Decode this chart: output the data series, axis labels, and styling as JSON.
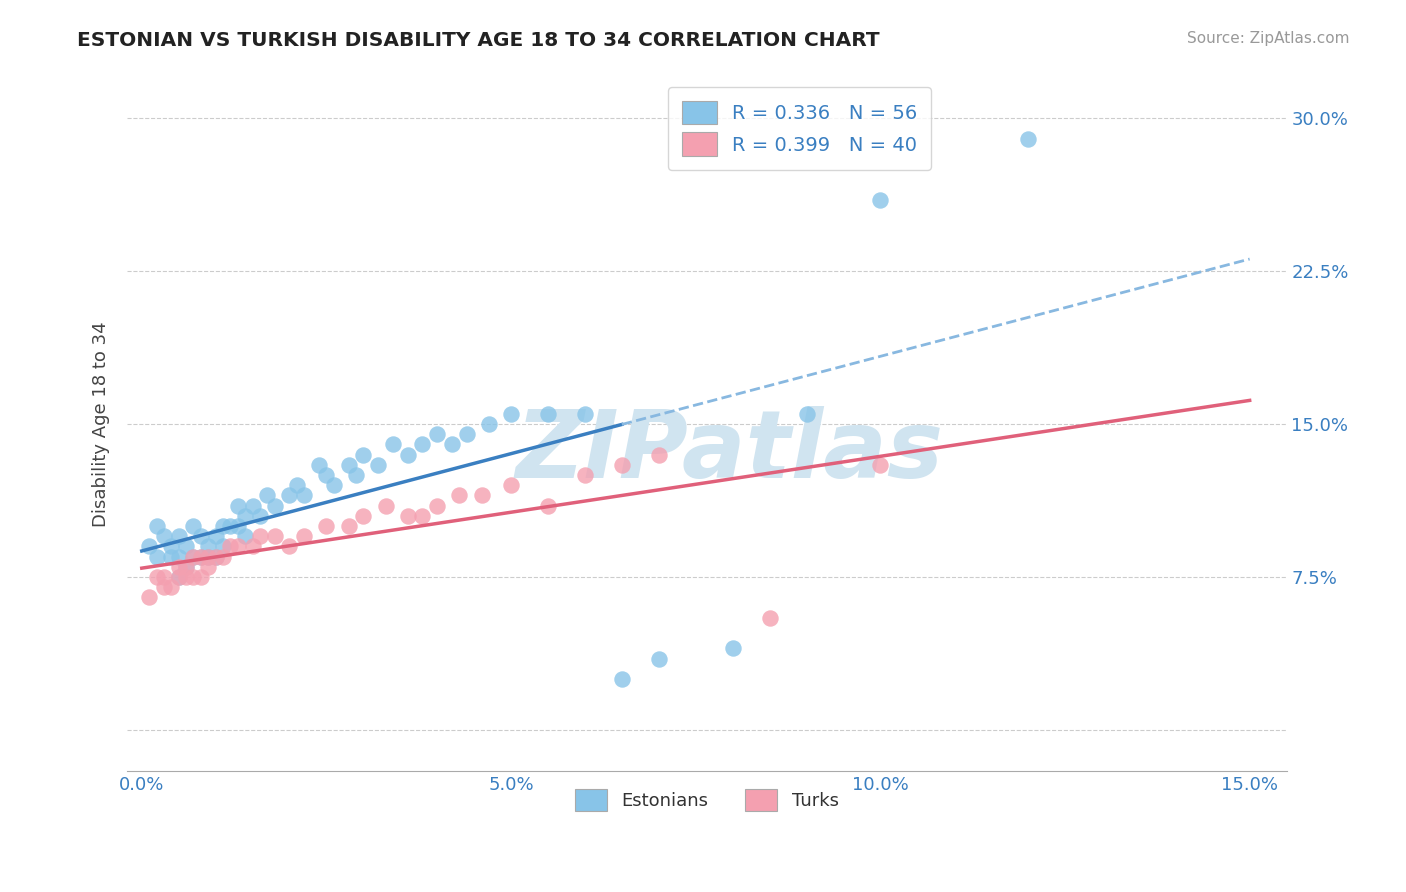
{
  "title": "ESTONIAN VS TURKISH DISABILITY AGE 18 TO 34 CORRELATION CHART",
  "source": "Source: ZipAtlas.com",
  "ylabel": "Disability Age 18 to 34",
  "xlim": [
    -0.002,
    0.155
  ],
  "ylim": [
    -0.02,
    0.32
  ],
  "xticks": [
    0.0,
    0.05,
    0.1,
    0.15
  ],
  "xticklabels": [
    "0.0%",
    "5.0%",
    "10.0%",
    "15.0%"
  ],
  "yticks": [
    0.0,
    0.075,
    0.15,
    0.225,
    0.3
  ],
  "yticklabels": [
    "",
    "7.5%",
    "15.0%",
    "22.5%",
    "30.0%"
  ],
  "R_estonian": 0.336,
  "N_estonian": 56,
  "R_turkish": 0.399,
  "N_turkish": 40,
  "estonian_color": "#88c4e8",
  "turkish_color": "#f4a0b0",
  "estonian_line_color": "#3a7fc1",
  "turkish_line_color": "#e0607a",
  "dashed_line_color": "#88b8e0",
  "watermark_color": "#d0e4f0",
  "background_color": "#ffffff",
  "legend_color": "#3a7fc1",
  "tick_label_color": "#3a7fc1",
  "grid_color": "#cccccc",
  "estonian_x": [
    0.001,
    0.002,
    0.002,
    0.003,
    0.004,
    0.004,
    0.005,
    0.005,
    0.005,
    0.006,
    0.006,
    0.007,
    0.007,
    0.008,
    0.008,
    0.009,
    0.009,
    0.01,
    0.01,
    0.011,
    0.011,
    0.012,
    0.013,
    0.013,
    0.014,
    0.014,
    0.015,
    0.016,
    0.017,
    0.018,
    0.02,
    0.021,
    0.022,
    0.024,
    0.025,
    0.026,
    0.028,
    0.029,
    0.03,
    0.032,
    0.034,
    0.036,
    0.038,
    0.04,
    0.042,
    0.044,
    0.047,
    0.05,
    0.055,
    0.06,
    0.065,
    0.07,
    0.08,
    0.09,
    0.1,
    0.12
  ],
  "estonian_y": [
    0.09,
    0.1,
    0.085,
    0.095,
    0.09,
    0.085,
    0.095,
    0.085,
    0.075,
    0.09,
    0.08,
    0.1,
    0.085,
    0.095,
    0.085,
    0.09,
    0.085,
    0.095,
    0.085,
    0.1,
    0.09,
    0.1,
    0.11,
    0.1,
    0.105,
    0.095,
    0.11,
    0.105,
    0.115,
    0.11,
    0.115,
    0.12,
    0.115,
    0.13,
    0.125,
    0.12,
    0.13,
    0.125,
    0.135,
    0.13,
    0.14,
    0.135,
    0.14,
    0.145,
    0.14,
    0.145,
    0.15,
    0.155,
    0.155,
    0.155,
    0.025,
    0.035,
    0.04,
    0.155,
    0.26,
    0.29
  ],
  "turkish_x": [
    0.001,
    0.002,
    0.003,
    0.003,
    0.004,
    0.005,
    0.005,
    0.006,
    0.006,
    0.007,
    0.007,
    0.008,
    0.008,
    0.009,
    0.009,
    0.01,
    0.011,
    0.012,
    0.013,
    0.015,
    0.016,
    0.018,
    0.02,
    0.022,
    0.025,
    0.028,
    0.03,
    0.033,
    0.036,
    0.038,
    0.04,
    0.043,
    0.046,
    0.05,
    0.055,
    0.06,
    0.065,
    0.07,
    0.085,
    0.1
  ],
  "turkish_y": [
    0.065,
    0.075,
    0.07,
    0.075,
    0.07,
    0.08,
    0.075,
    0.08,
    0.075,
    0.085,
    0.075,
    0.085,
    0.075,
    0.085,
    0.08,
    0.085,
    0.085,
    0.09,
    0.09,
    0.09,
    0.095,
    0.095,
    0.09,
    0.095,
    0.1,
    0.1,
    0.105,
    0.11,
    0.105,
    0.105,
    0.11,
    0.115,
    0.115,
    0.12,
    0.11,
    0.125,
    0.13,
    0.135,
    0.055,
    0.13
  ]
}
